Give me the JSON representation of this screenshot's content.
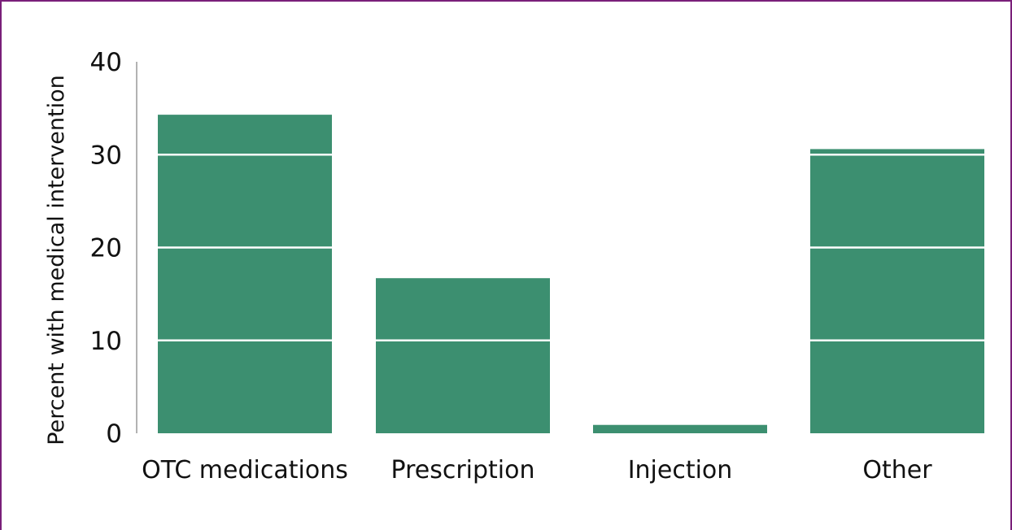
{
  "colors": {
    "bar": "#3c8f70",
    "gridline_over_bar": "#ffffff",
    "axis": "#999999",
    "frame": "#7a1f7a"
  },
  "chart_data": {
    "type": "bar",
    "title": "",
    "xlabel": "",
    "ylabel": "Percent with medical intervention",
    "categories": [
      "OTC medications",
      "Prescription",
      "Injection",
      "Other"
    ],
    "values": [
      34.3,
      16.7,
      0.9,
      30.6
    ],
    "ylim": [
      0,
      40
    ],
    "yticks": [
      0,
      10,
      20,
      30,
      40
    ],
    "ytick_labels": [
      "0",
      "10",
      "20",
      "30",
      "40"
    ],
    "grid": true,
    "legend": "none"
  }
}
